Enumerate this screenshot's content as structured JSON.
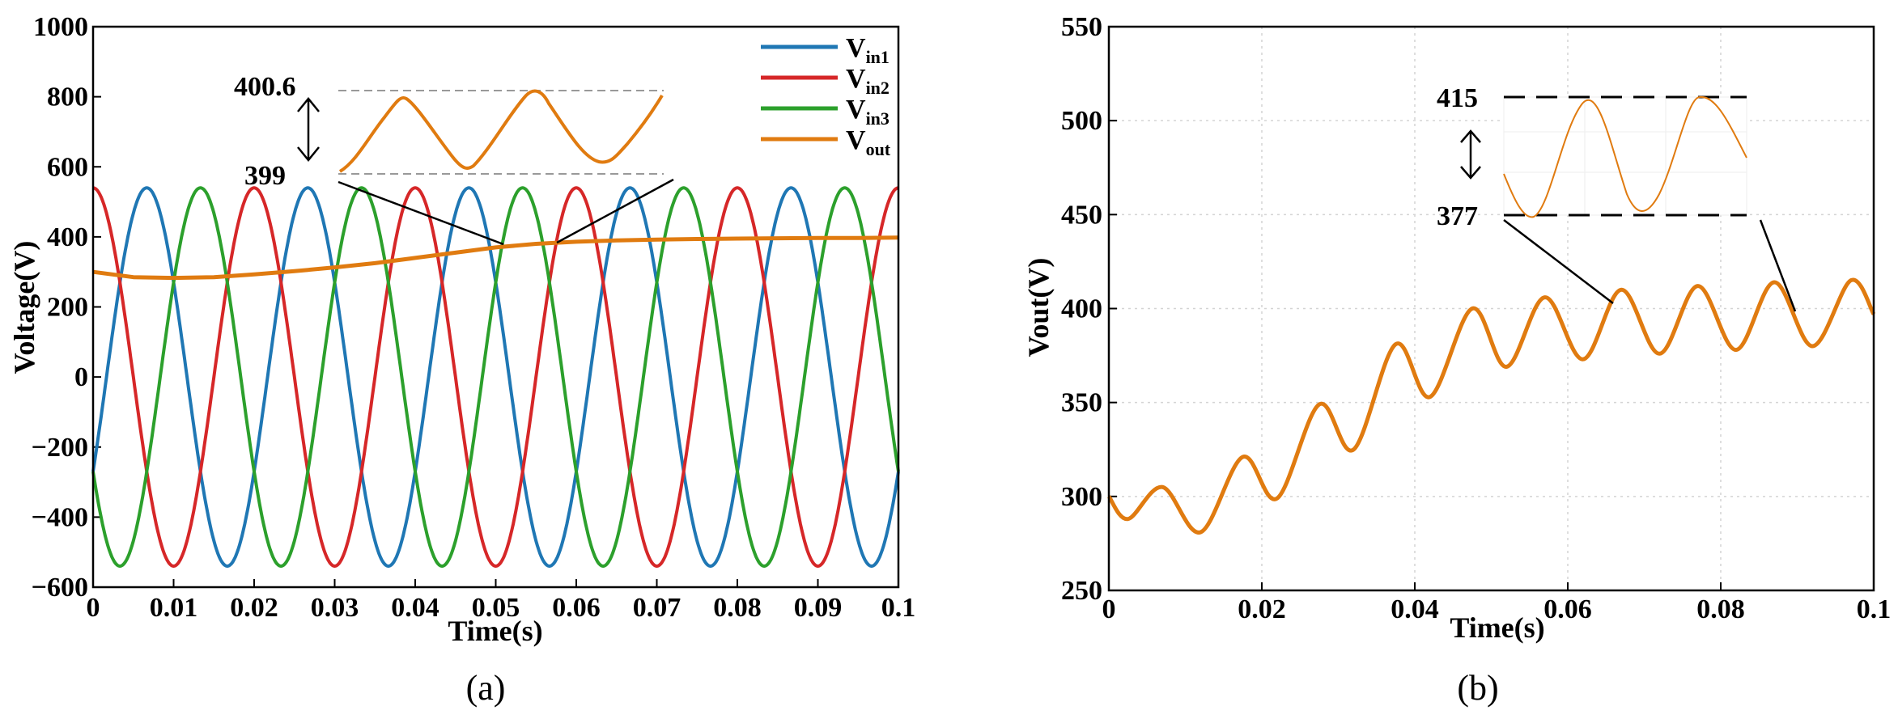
{
  "chart_data": [
    {
      "panel": "(a)",
      "type": "line",
      "xlabel": "Time(s)",
      "ylabel": "Voltage(V)",
      "xlim": [
        0,
        0.1
      ],
      "ylim": [
        -600,
        1000
      ],
      "xticks": [
        "0",
        "0.01",
        "0.02",
        "0.03",
        "0.04",
        "0.05",
        "0.06",
        "0.07",
        "0.08",
        "0.09",
        "0.1"
      ],
      "yticks": [
        "1000",
        "800",
        "600",
        "400",
        "200",
        "0",
        "−200",
        "−400",
        "−600"
      ],
      "grid": false,
      "legend_position": "top-right",
      "series": [
        {
          "name": "V",
          "subscript": "in1",
          "color": "#1f77b4",
          "kind": "sine",
          "amplitude": 540,
          "frequency_hz": 50,
          "phase_deg": -30
        },
        {
          "name": "V",
          "subscript": "in2",
          "color": "#d62728",
          "kind": "sine",
          "amplitude": 540,
          "frequency_hz": 50,
          "phase_deg": 90
        },
        {
          "name": "V",
          "subscript": "in3",
          "color": "#2ca02c",
          "kind": "sine",
          "amplitude": 540,
          "frequency_hz": 50,
          "phase_deg": 210
        },
        {
          "name": "V",
          "subscript": "out",
          "color": "#e07b10",
          "kind": "points",
          "x": [
            0,
            0.005,
            0.01,
            0.015,
            0.02,
            0.025,
            0.03,
            0.035,
            0.04,
            0.045,
            0.05,
            0.055,
            0.06,
            0.065,
            0.07,
            0.075,
            0.08,
            0.085,
            0.09,
            0.095,
            0.1
          ],
          "y": [
            300,
            285,
            283,
            285,
            293,
            302,
            313,
            325,
            340,
            355,
            370,
            380,
            386,
            390,
            392,
            394,
            395,
            396,
            397,
            397,
            398
          ]
        }
      ],
      "inset": {
        "top_label": "400.6",
        "bottom_label": "399",
        "color": "#e07b10"
      }
    },
    {
      "panel": "(b)",
      "type": "line",
      "xlabel": "Time(s)",
      "ylabel": "Vout(V)",
      "xlim": [
        0,
        0.1
      ],
      "ylim": [
        250,
        550
      ],
      "xticks": [
        "0",
        "0.02",
        "0.04",
        "0.06",
        "0.08",
        "0.1"
      ],
      "yticks": [
        "550",
        "500",
        "450",
        "400",
        "350",
        "300",
        "250"
      ],
      "grid": true,
      "series": [
        {
          "name": "Vout",
          "color": "#e07b10",
          "kind": "points",
          "x": [
            0,
            0.0025,
            0.007,
            0.012,
            0.0175,
            0.022,
            0.0275,
            0.032,
            0.0375,
            0.042,
            0.0475,
            0.052,
            0.057,
            0.062,
            0.067,
            0.072,
            0.077,
            0.082,
            0.087,
            0.092,
            0.097,
            0.1
          ],
          "y": [
            300,
            288,
            305,
            281,
            321,
            299,
            349,
            325,
            381,
            353,
            400,
            369,
            406,
            373,
            410,
            376,
            412,
            378,
            414,
            380,
            415,
            397
          ]
        }
      ],
      "inset": {
        "top_label": "415",
        "bottom_label": "377",
        "color": "#e07b10"
      }
    }
  ]
}
